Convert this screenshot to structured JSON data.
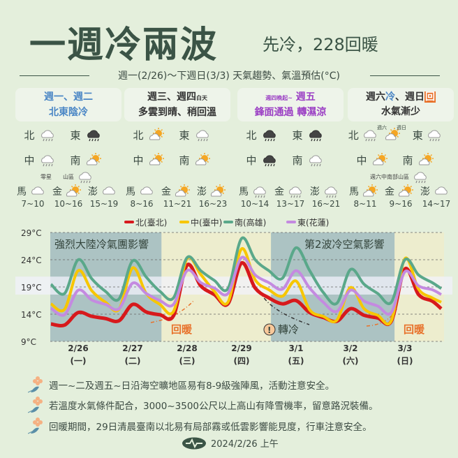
{
  "header": {
    "title": "一週冷兩波",
    "subtitle": "先冷，228回暖",
    "period": "週一(2/26)～下週日(3/3) 天氣趨勢、氣溫預估(°C)"
  },
  "columns": [
    {
      "line1": "週一、週二",
      "line1_small": "",
      "line2": "北東陰冷",
      "color": "#4a86c5",
      "row1": [
        {
          "label": "北",
          "icon": "cloud-rain"
        },
        {
          "label": "東",
          "icon": "dark-cloud-rain"
        }
      ],
      "row2": [
        {
          "label": "中",
          "icon": "cloud-rain"
        },
        {
          "label": "南",
          "icon": "sun-cloud"
        }
      ],
      "notes": [
        {
          "text": "零星",
          "icon": ""
        },
        {
          "text": "山區",
          "icon": "cloud-rain"
        }
      ],
      "islands": [
        {
          "name": "馬",
          "icon": "cloud",
          "temp": "7~10"
        },
        {
          "name": "金",
          "icon": "sun-cloud",
          "temp": "10~16"
        },
        {
          "name": "澎",
          "icon": "cloud",
          "temp": "15~19"
        }
      ]
    },
    {
      "line1": "週三、週四",
      "line1_small": "白天",
      "line2": "多雲到晴、稍回溫",
      "color": "#333333",
      "row1": [
        {
          "label": "北",
          "icon": "sun-cloud"
        },
        {
          "label": "東",
          "icon": "cloud-rain"
        }
      ],
      "row2": [
        {
          "label": "中",
          "icon": "sun-cloud"
        },
        {
          "label": "南",
          "icon": "sun-cloud"
        }
      ],
      "notes": [],
      "islands": [
        {
          "name": "馬",
          "icon": "cloud",
          "temp": "8~16"
        },
        {
          "name": "金",
          "icon": "sun-cloud",
          "temp": "11~21"
        },
        {
          "name": "澎",
          "icon": "sun-cloud",
          "temp": "16~23"
        }
      ]
    },
    {
      "line1": "週五",
      "line1_small": "週四晚起~",
      "line2": "鋒面通過 轉濕涼",
      "color": "#9b3fc4",
      "row1": [
        {
          "label": "北",
          "icon": "dark-cloud-rain"
        },
        {
          "label": "東",
          "icon": "dark-cloud-rain"
        }
      ],
      "row2": [
        {
          "label": "中",
          "icon": "dark-cloud-rain"
        },
        {
          "label": "南",
          "icon": "cloud-rain"
        }
      ],
      "notes": [],
      "islands": [
        {
          "name": "馬",
          "icon": "cloud-rain",
          "temp": "10~14"
        },
        {
          "name": "金",
          "icon": "cloud-rain",
          "temp": "13~17"
        },
        {
          "name": "澎",
          "icon": "cloud-rain",
          "temp": "16~21"
        }
      ]
    },
    {
      "line1_parts": [
        "週六",
        "冷",
        "、週日",
        "回"
      ],
      "line2": "水氣漸少",
      "color": "#333333",
      "row1_sat": "週六",
      "row1_sun": "週日",
      "row1": [
        {
          "label": "北",
          "icon": "cloud-rain",
          "icon2": "sun-cloud"
        },
        {
          "label": "東",
          "icon": "cloud-rain"
        }
      ],
      "row2": [
        {
          "label": "中",
          "icon": "sun-cloud"
        },
        {
          "label": "南",
          "icon": "sun-cloud"
        }
      ],
      "notes": [
        {
          "text": "週六中南部山區",
          "icon": "cloud-rain"
        }
      ],
      "islands": [
        {
          "name": "馬",
          "icon": "sun-cloud",
          "temp": "8~11"
        },
        {
          "name": "金",
          "icon": "sun-cloud",
          "temp": "9~16"
        },
        {
          "name": "澎",
          "icon": "cloud",
          "temp": "14~17"
        }
      ]
    }
  ],
  "chart_data": {
    "type": "line",
    "ylim": [
      9,
      29
    ],
    "yticks": [
      "29°C",
      "24°C",
      "19°C",
      "14°C",
      "9°C"
    ],
    "ytick_values": [
      29,
      24,
      19,
      14,
      9
    ],
    "grid": "horizontal dashed",
    "legend": "top",
    "xticks": [
      {
        "date": "2/26",
        "day": "(一)"
      },
      {
        "date": "2/27",
        "day": "(二)"
      },
      {
        "date": "2/28",
        "day": "(三)"
      },
      {
        "date": "2/29",
        "day": "(四)"
      },
      {
        "date": "3/1",
        "day": "(五)"
      },
      {
        "date": "3/2",
        "day": "(六)"
      },
      {
        "date": "3/3",
        "day": "(日)"
      }
    ],
    "x": [
      "2/26 00:00",
      "2/26 06:00",
      "2/26 12:00",
      "2/26 18:00",
      "2/27 00:00",
      "2/27 06:00",
      "2/27 12:00",
      "2/27 18:00",
      "2/28 00:00",
      "2/28 06:00",
      "2/28 12:00",
      "2/28 18:00",
      "2/29 00:00",
      "2/29 06:00",
      "2/29 12:00",
      "2/29 18:00",
      "3/1 00:00",
      "3/1 06:00",
      "3/1 12:00",
      "3/1 18:00",
      "3/2 00:00",
      "3/2 06:00",
      "3/2 12:00",
      "3/2 18:00",
      "3/3 00:00",
      "3/3 06:00",
      "3/3 12:00",
      "3/3 18:00",
      "3/4 00:00",
      "3/4 04:00"
    ],
    "series": [
      {
        "name": "北(臺北)",
        "color": "#d7191c",
        "values": [
          12.2,
          12.0,
          14.3,
          13.6,
          13.2,
          12.8,
          15.8,
          14.4,
          13.9,
          13.7,
          23.0,
          19.2,
          17.6,
          15.9,
          23.4,
          18.8,
          17.0,
          15.9,
          16.5,
          14.3,
          13.4,
          12.7,
          15.0,
          13.8,
          13.3,
          12.7,
          22.3,
          17.6,
          16.4,
          15.0
        ]
      },
      {
        "name": "中(臺中)",
        "color": "#f7c600",
        "values": [
          15.9,
          14.9,
          22.0,
          18.3,
          16.2,
          14.9,
          22.5,
          17.8,
          15.8,
          14.5,
          24.2,
          21.3,
          18.2,
          16.2,
          26.0,
          20.3,
          18.5,
          17.3,
          20.1,
          14.8,
          13.6,
          12.9,
          18.9,
          15.0,
          13.8,
          12.8,
          24.2,
          18.6,
          17.0,
          16.2
        ]
      },
      {
        "name": "南(高雄)",
        "color": "#5aa88a",
        "values": [
          19.5,
          17.8,
          24.0,
          20.5,
          18.2,
          16.8,
          23.8,
          20.8,
          18.2,
          17.0,
          24.4,
          22.0,
          20.2,
          18.7,
          27.9,
          24.0,
          22.0,
          20.6,
          26.2,
          22.0,
          18.0,
          16.0,
          22.2,
          19.5,
          17.8,
          16.2,
          24.0,
          21.2,
          19.8,
          18.7
        ]
      },
      {
        "name": "東(花蓮)",
        "color": "#c48ae0",
        "values": [
          15.1,
          13.9,
          18.4,
          16.6,
          15.8,
          15.0,
          19.7,
          17.8,
          16.5,
          15.8,
          22.0,
          19.8,
          18.8,
          17.8,
          24.4,
          21.2,
          19.8,
          18.6,
          22.0,
          18.8,
          16.2,
          14.5,
          18.4,
          16.4,
          15.5,
          14.3,
          21.8,
          19.2,
          18.5,
          17.6
        ]
      }
    ],
    "annotations": {
      "cold1": "強烈大陸冷氣團影響",
      "cold2": "第2波冷空氣影響",
      "warm1": "回暖",
      "turn_cold": "轉冷",
      "warm2": "回暖",
      "warn_symbol": "!"
    }
  },
  "notes": [
    "週一~二及週五~日沿海空曠地區易有8-9級強陣風，活動注意安全。",
    "若溫度水氣條件配合，3000~3500公尺以上高山有降雪機率，留意路況裝備。",
    "回暖期間，29日清晨臺南以北易有局部霧或低雲影響能見度，行車注意安全。"
  ],
  "footer": {
    "date": "2024/2/26 上午"
  }
}
